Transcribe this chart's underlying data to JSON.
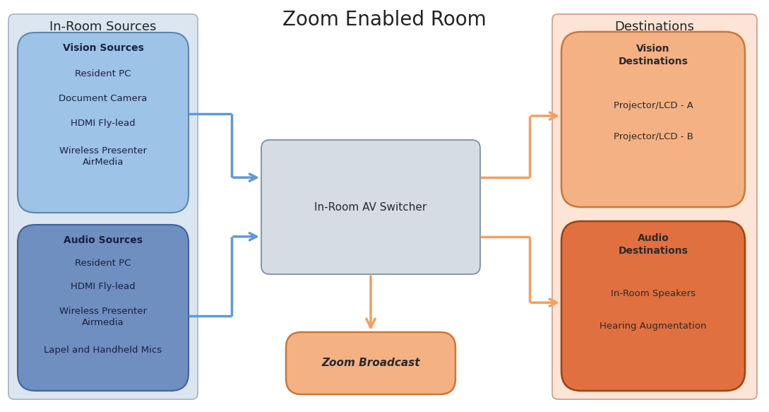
{
  "title": "Zoom Enabled Room",
  "left_panel_title": "In-Room Sources",
  "right_panel_title": "Destinations",
  "left_panel_bg": "#dce6f1",
  "left_panel_border": "#aab8cc",
  "right_panel_bg": "#fce4d6",
  "right_panel_border": "#d4a090",
  "vision_sources_bg": "#9dc3e6",
  "vision_sources_border": "#5b87b0",
  "audio_sources_bg": "#6e8fbf",
  "audio_sources_border": "#4060a0",
  "vision_dest_bg": "#f4b183",
  "vision_dest_border": "#c87838",
  "audio_dest_bg": "#e07040",
  "audio_dest_border": "#a04010",
  "switcher_bg": "#d6dce4",
  "switcher_border": "#8090a0",
  "zoom_broadcast_bg": "#f4b183",
  "zoom_broadcast_border": "#c87838",
  "vision_sources_title": "Vision Sources",
  "vision_sources_items": [
    "Resident PC",
    "Document Camera",
    "HDMI Fly-lead",
    "Wireless Presenter\nAirMedia"
  ],
  "audio_sources_title": "Audio Sources",
  "audio_sources_items": [
    "Resident PC",
    "HDMI Fly-lead",
    "Wireless Presenter\nAirmedia",
    "Lapel and Handheld Mics"
  ],
  "switcher_label": "In-Room AV Switcher",
  "zoom_broadcast_label": "Zoom Broadcast",
  "vision_dest_title": "Vision\nDestinations",
  "vision_dest_items": [
    "Projector/LCD - A",
    "Projector/LCD - B"
  ],
  "audio_dest_title": "Audio\nDestinations",
  "audio_dest_items": [
    "In-Room Speakers",
    "Hearing Augmentation"
  ],
  "arrow_blue": "#5b9bd5",
  "arrow_orange": "#f0a060",
  "bg_color": "#ffffff"
}
